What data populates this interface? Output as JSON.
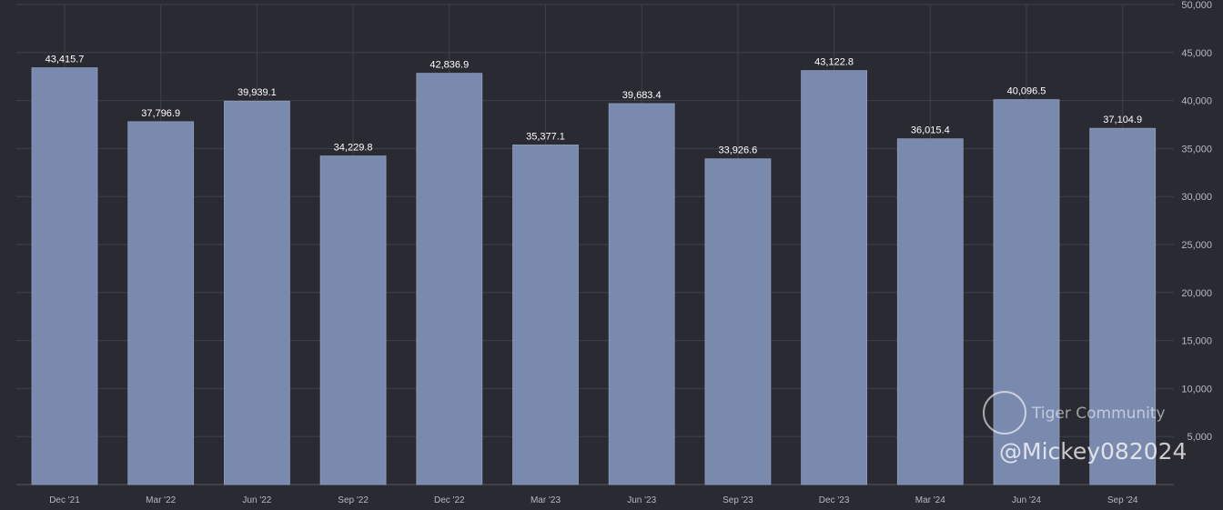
{
  "chart_data": {
    "type": "bar",
    "title": "",
    "xlabel": "",
    "ylabel": "",
    "categories": [
      "Dec '21",
      "Mar '22",
      "Jun '22",
      "Sep '22",
      "Dec '22",
      "Mar '23",
      "Jun '23",
      "Sep '23",
      "Dec '23",
      "Mar '24",
      "Jun '24",
      "Sep '24"
    ],
    "values": [
      43415.7,
      37796.9,
      39939.1,
      34229.8,
      42836.9,
      35377.1,
      39683.4,
      33926.6,
      43122.8,
      36015.4,
      40096.5,
      37104.9
    ],
    "value_labels": [
      "43,415.7",
      "37,796.9",
      "39,939.1",
      "34,229.8",
      "42,836.9",
      "35,377.1",
      "39,683.4",
      "33,926.6",
      "43,122.8",
      "36,015.4",
      "40,096.5",
      "37,104.9"
    ],
    "ylim": [
      0,
      50000
    ],
    "yticks": [
      5000,
      10000,
      15000,
      20000,
      25000,
      30000,
      35000,
      40000,
      45000,
      50000
    ],
    "ytick_labels": [
      "5,000",
      "10,000",
      "15,000",
      "20,000",
      "25,000",
      "30,000",
      "35,000",
      "40,000",
      "45,000",
      "50,000"
    ],
    "grid": true,
    "colors": {
      "bar": "#7a8aae",
      "background": "#2a2a33",
      "grid": "#40404a",
      "text": "#ffffff",
      "axis_text": "#b8b8c0"
    }
  },
  "watermark": {
    "brand": "Tiger Community",
    "user": "@Mickey082024"
  }
}
